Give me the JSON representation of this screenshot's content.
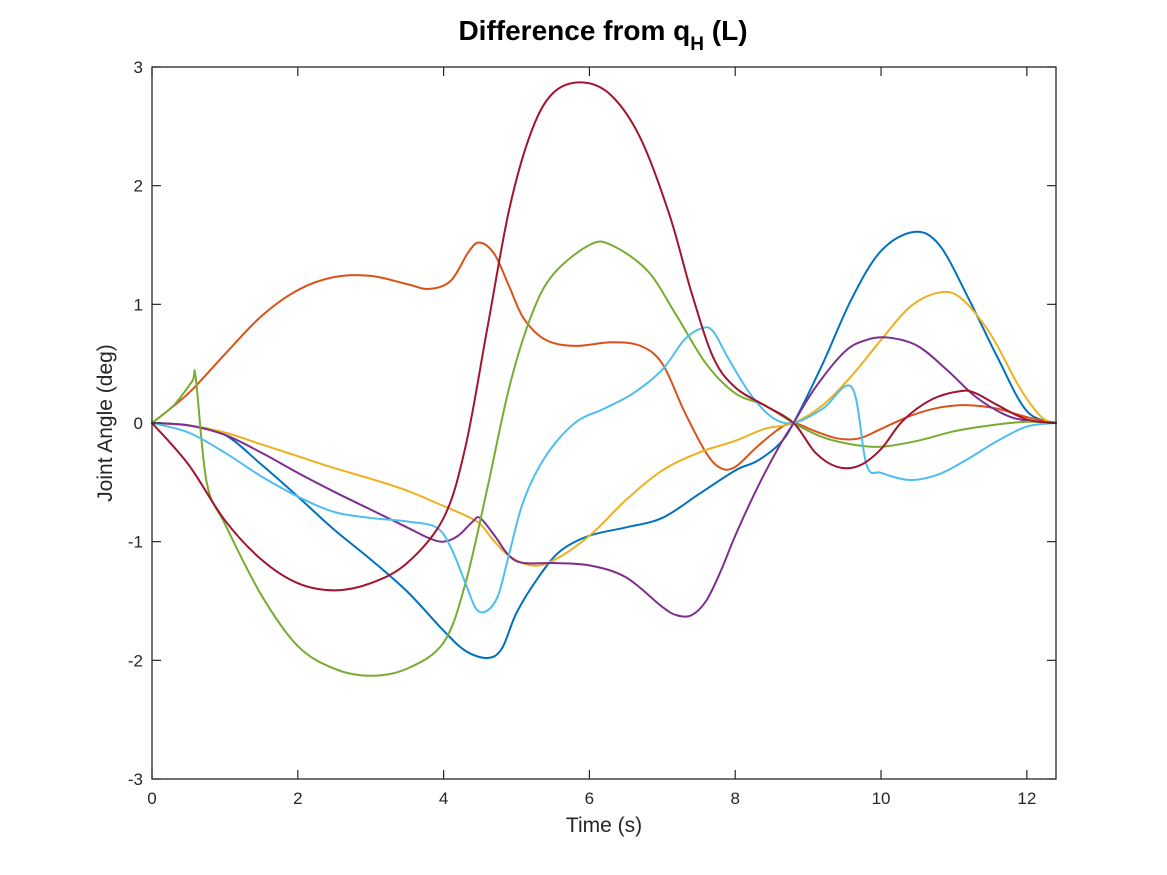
{
  "chart_data": {
    "type": "line",
    "title_main": "Difference from q",
    "title_subscript": "H",
    "title_suffix": " (L)",
    "xlabel": "Time (s)",
    "ylabel": "Joint Angle (deg)",
    "xlim": [
      0,
      12.4
    ],
    "ylim": [
      -3,
      3
    ],
    "xticks": [
      0,
      2,
      4,
      6,
      8,
      10,
      12
    ],
    "yticks": [
      -3,
      -2,
      -1,
      0,
      1,
      2,
      3
    ],
    "grid": false,
    "series": [
      {
        "color": "#0072BD",
        "x": [
          0,
          0.5,
          1,
          1.5,
          2,
          2.5,
          3,
          3.5,
          4,
          4.3,
          4.6,
          4.8,
          5,
          5.3,
          5.6,
          6,
          6.5,
          7,
          7.5,
          8,
          8.3,
          8.6,
          8.8,
          9.2,
          9.6,
          10,
          10.45,
          10.8,
          11.2,
          11.6,
          12,
          12.4
        ],
        "y": [
          0,
          -0.02,
          -0.1,
          -0.35,
          -0.62,
          -0.9,
          -1.15,
          -1.42,
          -1.75,
          -1.92,
          -1.98,
          -1.9,
          -1.6,
          -1.3,
          -1.08,
          -0.95,
          -0.88,
          -0.8,
          -0.6,
          -0.4,
          -0.32,
          -0.18,
          0,
          0.5,
          1.05,
          1.45,
          1.61,
          1.5,
          1.05,
          0.55,
          0.1,
          0
        ]
      },
      {
        "color": "#D95319",
        "x": [
          0,
          0.5,
          1,
          1.5,
          2,
          2.5,
          3,
          3.5,
          3.8,
          4.1,
          4.35,
          4.5,
          4.7,
          4.9,
          5.1,
          5.4,
          5.8,
          6.3,
          6.7,
          7,
          7.3,
          7.6,
          7.8,
          8,
          8.3,
          8.6,
          8.8,
          9.1,
          9.4,
          9.7,
          10,
          10.4,
          10.8,
          11.2,
          11.6,
          12,
          12.4
        ],
        "y": [
          0,
          0.25,
          0.58,
          0.9,
          1.12,
          1.23,
          1.24,
          1.17,
          1.13,
          1.2,
          1.45,
          1.52,
          1.42,
          1.15,
          0.88,
          0.7,
          0.65,
          0.68,
          0.65,
          0.5,
          0.1,
          -0.25,
          -0.38,
          -0.37,
          -0.2,
          -0.05,
          0,
          -0.07,
          -0.13,
          -0.13,
          -0.05,
          0.06,
          0.13,
          0.15,
          0.12,
          0.05,
          0
        ]
      },
      {
        "color": "#EDB120",
        "x": [
          0,
          0.5,
          1,
          1.5,
          2,
          2.5,
          3,
          3.5,
          4,
          4.3,
          4.5,
          4.7,
          4.9,
          5.2,
          5.5,
          6,
          6.5,
          7,
          7.5,
          8,
          8.4,
          8.8,
          9.2,
          9.6,
          10,
          10.4,
          10.8,
          11.1,
          11.5,
          11.9,
          12.2,
          12.4
        ],
        "y": [
          0,
          -0.02,
          -0.08,
          -0.18,
          -0.28,
          -0.38,
          -0.47,
          -0.57,
          -0.7,
          -0.78,
          -0.85,
          -1.0,
          -1.12,
          -1.2,
          -1.16,
          -0.95,
          -0.65,
          -0.4,
          -0.25,
          -0.15,
          -0.05,
          0,
          0.15,
          0.4,
          0.7,
          0.98,
          1.1,
          1.05,
          0.75,
          0.3,
          0.05,
          0
        ]
      },
      {
        "color": "#7E2F8E",
        "x": [
          0,
          0.5,
          1,
          1.5,
          2,
          2.5,
          3,
          3.5,
          3.8,
          4,
          4.2,
          4.4,
          4.5,
          4.7,
          4.9,
          5.1,
          5.5,
          6,
          6.5,
          7,
          7.2,
          7.4,
          7.6,
          7.8,
          8,
          8.3,
          8.6,
          8.8,
          9.1,
          9.5,
          9.8,
          10.1,
          10.5,
          10.9,
          11.3,
          11.7,
          12,
          12.4
        ],
        "y": [
          0,
          -0.02,
          -0.1,
          -0.25,
          -0.42,
          -0.58,
          -0.73,
          -0.88,
          -0.97,
          -1.0,
          -0.95,
          -0.83,
          -0.8,
          -0.95,
          -1.12,
          -1.18,
          -1.18,
          -1.2,
          -1.3,
          -1.55,
          -1.62,
          -1.62,
          -1.5,
          -1.25,
          -0.95,
          -0.55,
          -0.2,
          0,
          0.3,
          0.6,
          0.7,
          0.72,
          0.65,
          0.45,
          0.22,
          0.07,
          0.02,
          0
        ]
      },
      {
        "color": "#77AC30",
        "x": [
          0,
          0.3,
          0.55,
          0.6,
          0.75,
          1,
          1.5,
          2,
          2.5,
          3,
          3.5,
          4,
          4.3,
          4.6,
          4.9,
          5.2,
          5.5,
          6,
          6.3,
          6.8,
          7.2,
          7.6,
          8,
          8.4,
          8.8,
          9.2,
          9.6,
          10,
          10.5,
          11,
          11.5,
          12,
          12.4
        ],
        "y": [
          0,
          0.15,
          0.35,
          0.38,
          -0.5,
          -0.85,
          -1.45,
          -1.88,
          -2.07,
          -2.13,
          -2.07,
          -1.85,
          -1.35,
          -0.55,
          0.3,
          0.9,
          1.25,
          1.5,
          1.5,
          1.28,
          0.9,
          0.5,
          0.25,
          0.15,
          0,
          -0.12,
          -0.18,
          -0.2,
          -0.15,
          -0.07,
          -0.02,
          0.01,
          0
        ]
      },
      {
        "color": "#4DBEEE",
        "x": [
          0,
          0.5,
          1,
          1.5,
          2,
          2.5,
          3,
          3.5,
          3.9,
          4.1,
          4.3,
          4.45,
          4.6,
          4.75,
          4.9,
          5.1,
          5.4,
          5.8,
          6.2,
          6.6,
          7,
          7.3,
          7.55,
          7.7,
          7.9,
          8.2,
          8.5,
          8.8,
          9.2,
          9.6,
          9.8,
          10,
          10.4,
          10.8,
          11.2,
          11.6,
          12,
          12.4
        ],
        "y": [
          0,
          -0.08,
          -0.25,
          -0.45,
          -0.62,
          -0.75,
          -0.8,
          -0.83,
          -0.88,
          -1.05,
          -1.35,
          -1.57,
          -1.58,
          -1.45,
          -1.1,
          -0.65,
          -0.28,
          0.0,
          0.12,
          0.25,
          0.45,
          0.7,
          0.8,
          0.77,
          0.55,
          0.25,
          0.05,
          0,
          0.12,
          0.3,
          -0.35,
          -0.42,
          -0.48,
          -0.43,
          -0.3,
          -0.15,
          -0.03,
          0
        ]
      },
      {
        "color": "#A2142F",
        "x": [
          0,
          0.5,
          1,
          1.5,
          2,
          2.5,
          3,
          3.5,
          4,
          4.3,
          4.6,
          4.9,
          5.2,
          5.5,
          5.9,
          6.3,
          6.7,
          7.1,
          7.4,
          7.7,
          8,
          8.4,
          8.8,
          9.1,
          9.4,
          9.7,
          10,
          10.3,
          10.7,
          11.1,
          11.3,
          11.6,
          12,
          12.4
        ],
        "y": [
          0,
          -0.35,
          -0.82,
          -1.15,
          -1.35,
          -1.41,
          -1.35,
          -1.18,
          -0.8,
          -0.2,
          0.8,
          1.8,
          2.45,
          2.78,
          2.87,
          2.76,
          2.4,
          1.75,
          1.1,
          0.55,
          0.3,
          0.15,
          0,
          -0.25,
          -0.37,
          -0.36,
          -0.22,
          0.02,
          0.2,
          0.27,
          0.25,
          0.15,
          0.03,
          0
        ]
      }
    ]
  }
}
